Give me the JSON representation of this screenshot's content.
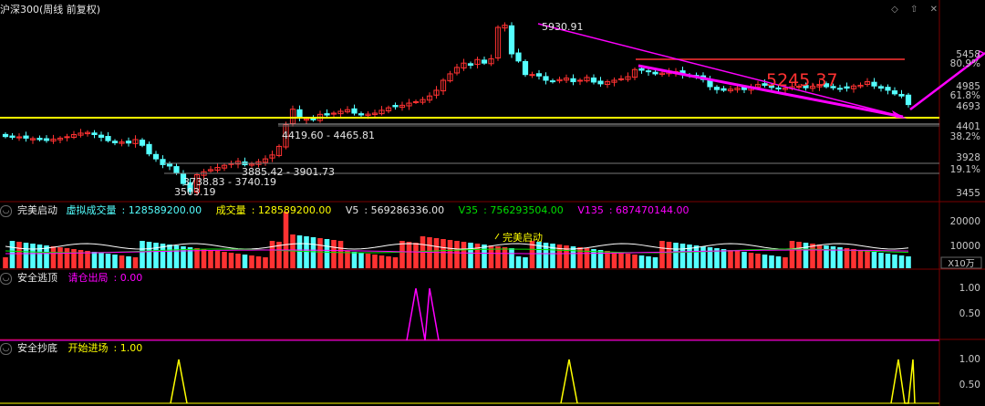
{
  "header": {
    "title": "沪深300(周线 前复权)",
    "icons": [
      "diamond-icon",
      "arrow-up-icon",
      "close-icon"
    ]
  },
  "colors": {
    "up": "#ff3232",
    "down": "#54ffff",
    "yellow": "#ffff00",
    "magenta": "#ff00ff",
    "red_line": "#ff3232",
    "gray_line": "#8c8c8c"
  },
  "main_chart": {
    "price_annotations": {
      "high": "5930.91",
      "low": "3503.19",
      "range1": "4419.60 - 4465.81",
      "range2": "3738.83 - 3740.19",
      "range3": "3885.42 - 3901.73",
      "big_label": "5245.37"
    },
    "y_axis": {
      "ticks": [
        {
          "label": "5458",
          "color": "#c8c8c8"
        },
        {
          "label": "80.9%",
          "color": "#c8c8c8"
        },
        {
          "label": "4985",
          "color": "#c8c8c8"
        },
        {
          "label": "61.8%",
          "color": "#c8c8c8"
        },
        {
          "label": "4693",
          "color": "#c8c8c8"
        },
        {
          "label": "4401",
          "color": "#c8c8c8"
        },
        {
          "label": "38.2%",
          "color": "#c8c8c8"
        },
        {
          "label": "3928",
          "color": "#c8c8c8"
        },
        {
          "label": "19.1%",
          "color": "#c8c8c8"
        },
        {
          "label": "3455",
          "color": "#c8c8c8"
        }
      ]
    }
  },
  "volume_panel": {
    "name": "完美启动",
    "virtual_vol_label": "虚拟成交量",
    "virtual_vol_value": "128589200.00",
    "vol_label": "成交量",
    "vol_value": "128589200.00",
    "v5_label": "V5",
    "v5_value": "569286336.00",
    "v35_label": "V35",
    "v35_value": "756293504.00",
    "v135_label": "V135",
    "v135_value": "687470144.00",
    "signal_label": "完美启动",
    "y_ticks": [
      "20000",
      "10000"
    ],
    "unit": "X10万"
  },
  "escape_panel": {
    "name": "安全逃顶",
    "signal_label": "请仓出局",
    "signal_value": "0.00",
    "y_ticks": [
      "1.00",
      "0.50"
    ]
  },
  "bottom_panel": {
    "name": "安全抄底",
    "signal_label": "开始进场",
    "signal_value": "1.00",
    "y_ticks": [
      "1.00",
      "0.50"
    ]
  }
}
